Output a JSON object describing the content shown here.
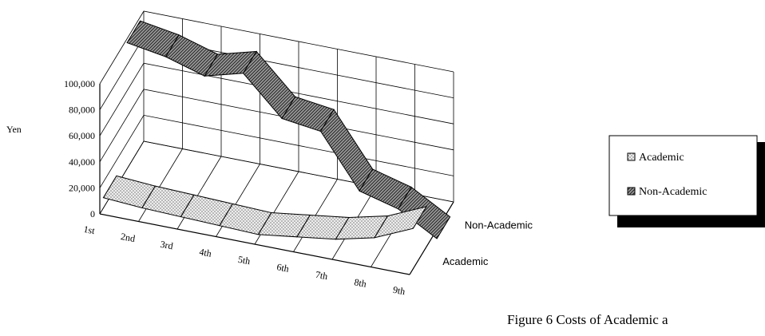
{
  "chart_data": {
    "type": "line",
    "subtype": "3d-ribbon",
    "ylabel": "Yen",
    "ylim": [
      0,
      100000
    ],
    "yticks": [
      "0",
      "20,000",
      "40,000",
      "60,000",
      "80,000",
      "100,000"
    ],
    "categories": [
      "1st",
      "2nd",
      "3rd",
      "4th",
      "5th",
      "6th",
      "7th",
      "8th",
      "9th"
    ],
    "depth_labels": [
      "Academic",
      "Non-Academic"
    ],
    "series": [
      {
        "name": "Academic",
        "values": [
          8000,
          6000,
          5000,
          4000,
          3000,
          7000,
          11000,
          18000,
          31000
        ]
      },
      {
        "name": "Non-Academic",
        "values": [
          97000,
          92000,
          83000,
          91000,
          62000,
          58000,
          18000,
          10000,
          -7000
        ]
      }
    ],
    "grid": true,
    "legend": {
      "placement": "right",
      "entries": [
        "Academic",
        "Non-Academic"
      ]
    },
    "caption": "Figure 6   Costs of Academic a"
  },
  "colors": {
    "academic_fill": "#e9e9e9",
    "nonacademic_fill": "#8c8c8c",
    "line": "#000000"
  }
}
